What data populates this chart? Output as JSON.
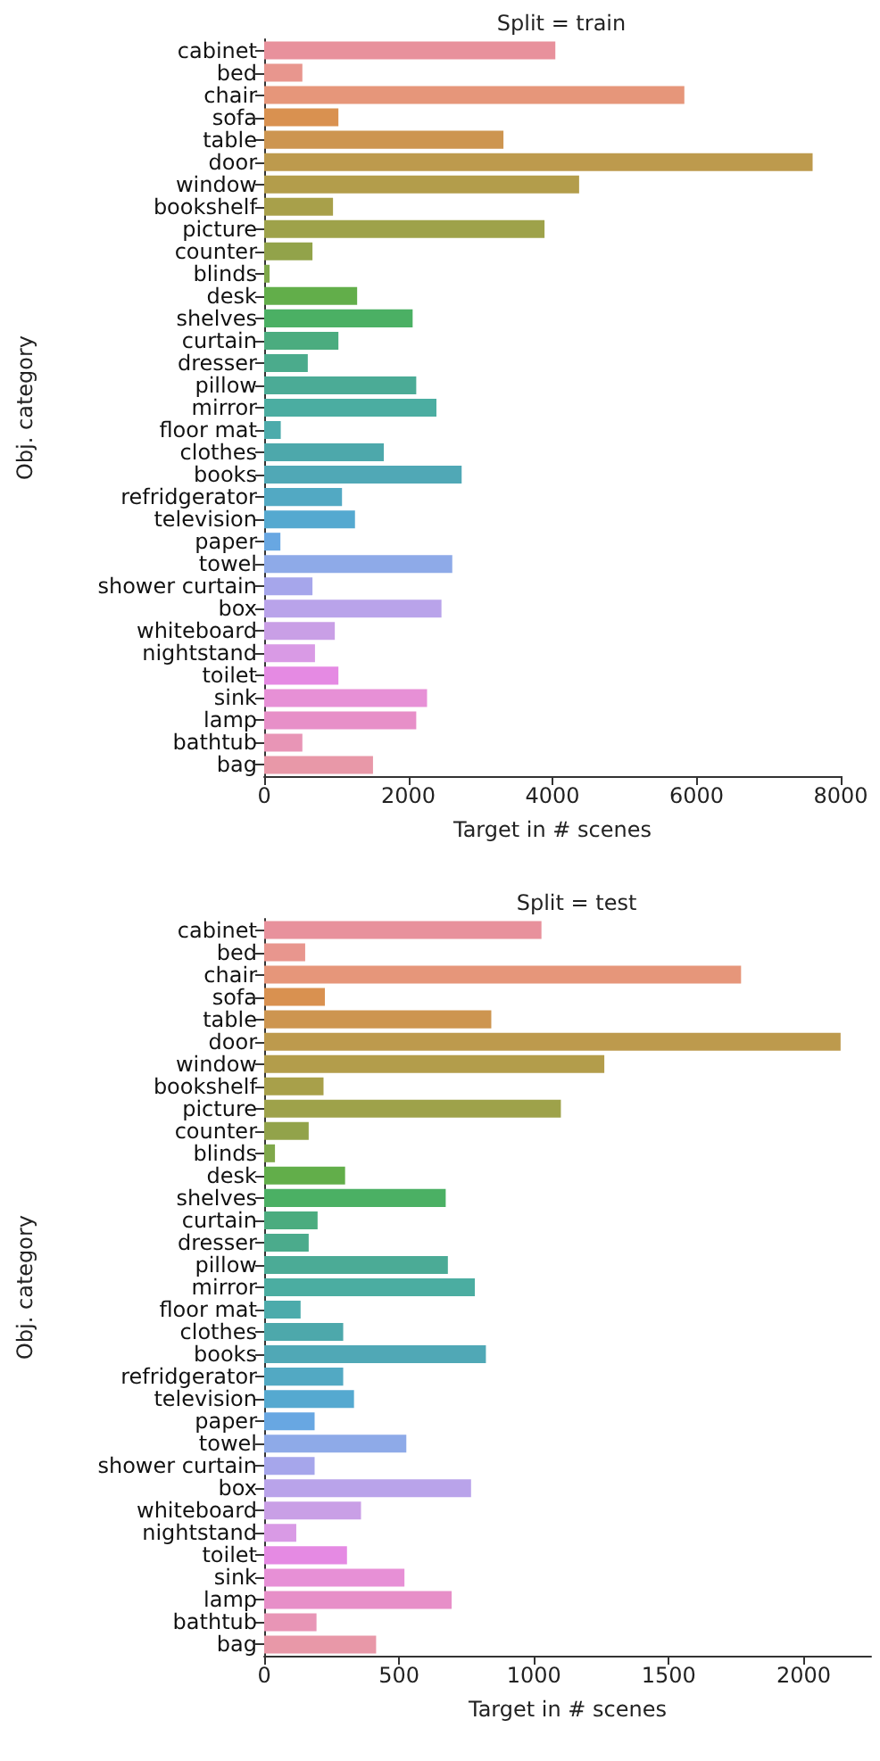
{
  "chart_data": [
    {
      "type": "bar",
      "orientation": "horizontal",
      "title": "Split = train",
      "xlabel": "Target in # scenes",
      "ylabel": "Obj. category",
      "categories": [
        "cabinet",
        "bed",
        "chair",
        "sofa",
        "table",
        "door",
        "window",
        "bookshelf",
        "picture",
        "counter",
        "blinds",
        "desk",
        "shelves",
        "curtain",
        "dresser",
        "pillow",
        "mirror",
        "floor mat",
        "clothes",
        "books",
        "refridgerator",
        "television",
        "paper",
        "towel",
        "shower curtain",
        "box",
        "whiteboard",
        "nightstand",
        "toilet",
        "sink",
        "lamp",
        "bathtub",
        "bag"
      ],
      "values": [
        4040,
        530,
        5830,
        1030,
        3320,
        7610,
        4370,
        955,
        3890,
        670,
        75,
        1290,
        2060,
        1030,
        605,
        2110,
        2390,
        230,
        1660,
        2740,
        1080,
        1260,
        225,
        2610,
        670,
        2460,
        980,
        705,
        1030,
        2260,
        2110,
        530,
        1510
      ],
      "colors": [
        "#e8919c",
        "#e8968e",
        "#e6967a",
        "#d99150",
        "#cd9550",
        "#bd9a4d",
        "#b39d4b",
        "#a8a04a",
        "#9ea24a",
        "#92a34a",
        "#7fa84a",
        "#62ae4a",
        "#4bb064",
        "#4bac7f",
        "#4bab8c",
        "#4bab96",
        "#4bada1",
        "#4cabab",
        "#4da8ab",
        "#50a8b6",
        "#52a9c3",
        "#55a9d0",
        "#68a7e2",
        "#8eaae8",
        "#a6a6eb",
        "#b9a3ea",
        "#c99fe6",
        "#d99ae5",
        "#e58ae3",
        "#e790d6",
        "#e78fc8",
        "#e895b6",
        "#e898a8"
      ],
      "xlim": [
        0,
        8000
      ],
      "xticks": [
        0,
        2000,
        4000,
        6000,
        8000
      ]
    },
    {
      "type": "bar",
      "orientation": "horizontal",
      "title": "Split = test",
      "xlabel": "Target in # scenes",
      "ylabel": "Obj. category",
      "categories": [
        "cabinet",
        "bed",
        "chair",
        "sofa",
        "table",
        "door",
        "window",
        "bookshelf",
        "picture",
        "counter",
        "blinds",
        "desk",
        "shelves",
        "curtain",
        "dresser",
        "pillow",
        "mirror",
        "floor mat",
        "clothes",
        "books",
        "refridgerator",
        "television",
        "paper",
        "towel",
        "shower curtain",
        "box",
        "whiteboard",
        "nightstand",
        "toilet",
        "sink",
        "lamp",
        "bathtub",
        "bag"
      ],
      "values": [
        1028,
        152,
        1768,
        225,
        842,
        2137,
        1261,
        220,
        1100,
        165,
        40,
        300,
        673,
        198,
        165,
        681,
        781,
        135,
        293,
        822,
        293,
        333,
        187,
        527,
        187,
        767,
        359,
        119,
        307,
        520,
        695,
        194,
        415
      ],
      "colors": [
        "#e8919c",
        "#e8968e",
        "#e6967a",
        "#d99150",
        "#cd9550",
        "#bd9a4d",
        "#b39d4b",
        "#a8a04a",
        "#9ea24a",
        "#92a34a",
        "#7fa84a",
        "#62ae4a",
        "#4bb064",
        "#4bac7f",
        "#4bab8c",
        "#4bab96",
        "#4bada1",
        "#4cabab",
        "#4da8ab",
        "#50a8b6",
        "#52a9c3",
        "#55a9d0",
        "#68a7e2",
        "#8eaae8",
        "#a6a6eb",
        "#b9a3ea",
        "#c99fe6",
        "#d99ae5",
        "#e58ae3",
        "#e790d6",
        "#e78fc8",
        "#e895b6",
        "#e898a8"
      ],
      "xlim": [
        0,
        2250
      ],
      "xticks": [
        0,
        500,
        1000,
        1500,
        2000
      ]
    }
  ]
}
